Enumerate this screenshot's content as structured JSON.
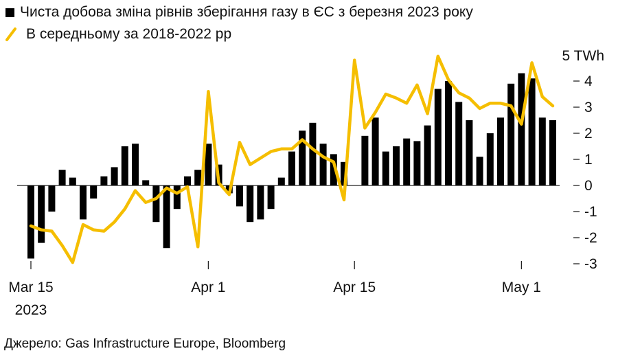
{
  "legend": {
    "bars_label": "Чиста добова зміна рівнів зберігання газу в ЄС з березня 2023 року",
    "line_label": "В середньому за 2018-2022 рр"
  },
  "colors": {
    "bars": "#000000",
    "line": "#f5be00",
    "axis": "#222222"
  },
  "chart_data": {
    "type": "bar",
    "unit_label": "5 TWh",
    "ylim": [
      -3,
      5
    ],
    "yticks": [
      "-3",
      "-2",
      "-1",
      "0",
      "1",
      "2",
      "3",
      "4"
    ],
    "xtick_labels": [
      {
        "index": 0,
        "label": "Mar 15",
        "sub": "2023"
      },
      {
        "index": 17,
        "label": "Apr 1",
        "sub": ""
      },
      {
        "index": 31,
        "label": "Apr 15",
        "sub": ""
      },
      {
        "index": 47,
        "label": "May 1",
        "sub": ""
      }
    ],
    "series": [
      {
        "kind": "bar",
        "values": [
          -2.8,
          -2.2,
          -1.0,
          0.6,
          0.3,
          -1.3,
          -0.5,
          0.35,
          0.7,
          1.5,
          1.6,
          0.2,
          -1.4,
          -2.4,
          -0.9,
          0.35,
          0.6,
          1.6,
          0.8,
          -0.3,
          -0.8,
          -1.4,
          -1.3,
          -0.9,
          0.3,
          1.3,
          2.1,
          2.4,
          1.6,
          1.2,
          0.9,
          null,
          1.9,
          2.6,
          1.3,
          1.5,
          1.8,
          1.7,
          2.3,
          3.7,
          4.0,
          3.2,
          2.5,
          1.1,
          2.0,
          2.6,
          3.9,
          4.3,
          4.1,
          2.6,
          2.5
        ]
      },
      {
        "kind": "line",
        "values": [
          -1.55,
          -1.7,
          -1.75,
          -2.3,
          -2.95,
          -1.5,
          -1.7,
          -1.75,
          -1.4,
          -0.9,
          -0.2,
          -0.65,
          -0.5,
          -0.1,
          -0.3,
          -0.05,
          -2.35,
          3.6,
          0.1,
          -0.35,
          1.65,
          0.8,
          1.05,
          1.3,
          1.4,
          1.4,
          1.75,
          1.4,
          1.1,
          0.9,
          -0.55,
          4.8,
          2.2,
          2.8,
          3.5,
          3.35,
          3.15,
          3.85,
          2.75,
          4.95,
          4.05,
          3.55,
          3.35,
          2.95,
          3.15,
          3.15,
          3.05,
          2.35,
          4.7,
          3.4,
          3.05
        ]
      }
    ]
  },
  "source": "Джерело: Gas Infrastructure Europe, Bloomberg"
}
